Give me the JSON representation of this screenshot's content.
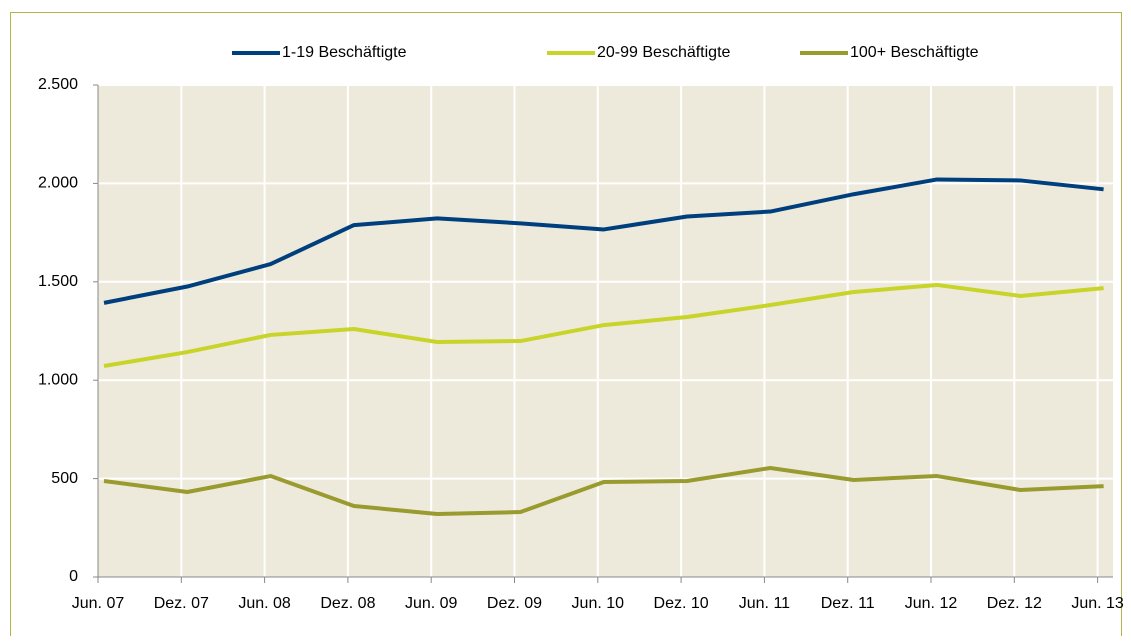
{
  "chart_data": {
    "type": "line",
    "categories": [
      "Jun. 07",
      "Dez. 07",
      "Jun. 08",
      "Dez. 08",
      "Jun. 09",
      "Dez. 09",
      "Jun. 10",
      "Dez. 10",
      "Jun. 11",
      "Dez. 11",
      "Jun. 12",
      "Dez. 12",
      "Jun. 13"
    ],
    "series": [
      {
        "name": "1-19 Beschäftigte",
        "color": "#003f7d",
        "values": [
          1393,
          1476,
          1590,
          1788,
          1822,
          1797,
          1766,
          1832,
          1857,
          1945,
          2020,
          2015,
          1970
        ]
      },
      {
        "name": "20-99 Beschäftigte",
        "color": "#c8d42a",
        "values": [
          1072,
          1143,
          1230,
          1260,
          1194,
          1199,
          1280,
          1321,
          1382,
          1448,
          1484,
          1428,
          1468
        ]
      },
      {
        "name": "100+ Beschäftigte",
        "color": "#999b2f",
        "values": [
          488,
          432,
          513,
          361,
          320,
          330,
          483,
          488,
          554,
          493,
          513,
          442,
          462
        ]
      }
    ],
    "ylim": [
      0,
      2500
    ],
    "yticks": [
      0,
      500,
      {
        "value": 1000,
        "label": "1.000"
      },
      {
        "value": 1500,
        "label": "1.500"
      },
      {
        "value": 2000,
        "label": "2.000"
      },
      {
        "value": 2500,
        "label": "2.500"
      }
    ],
    "grid": true,
    "legend": "top"
  }
}
